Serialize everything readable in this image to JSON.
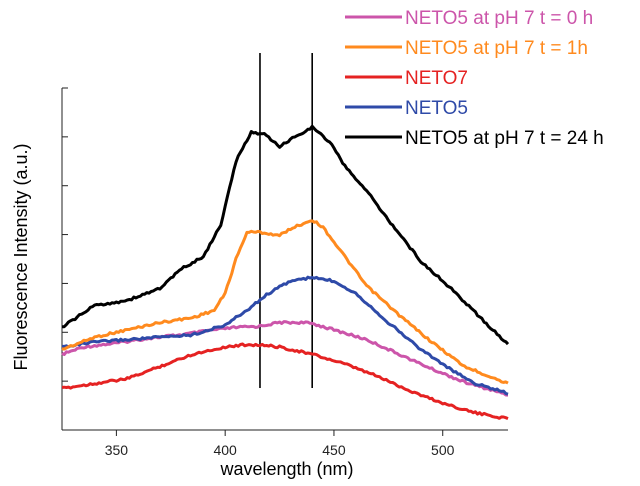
{
  "chart_data": {
    "type": "line",
    "xlabel": "wavelength (nm)",
    "ylabel": "Fluorescence Intensity (a.u.)",
    "xlim": [
      325,
      530
    ],
    "xticks": [
      350,
      400,
      450,
      500
    ],
    "ylim": [
      0,
      7
    ],
    "y_tick_labels_shown": false,
    "grid": false,
    "legend_placement": "top-right",
    "vertical_markers": [
      416,
      440
    ],
    "series": [
      {
        "name": "NETO5 at pH 7 t = 0 h",
        "color": "#cc55aa",
        "x": [
          325,
          335,
          350,
          365,
          380,
          395,
          405,
          415,
          425,
          435,
          440,
          450,
          465,
          480,
          495,
          510,
          530
        ],
        "y": [
          1.55,
          1.7,
          1.78,
          1.88,
          1.95,
          2.05,
          2.1,
          2.12,
          2.2,
          2.2,
          2.18,
          2.05,
          1.85,
          1.55,
          1.25,
          0.98,
          0.72
        ]
      },
      {
        "name": "NETO5 at pH 7 t = 1h",
        "color": "#ff8a1e",
        "x": [
          325,
          340,
          355,
          370,
          385,
          395,
          400,
          405,
          410,
          416,
          425,
          430,
          440,
          445,
          455,
          465,
          480,
          495,
          510,
          530
        ],
        "y": [
          1.65,
          1.9,
          2.05,
          2.2,
          2.3,
          2.45,
          2.8,
          3.5,
          4.05,
          4.05,
          3.98,
          4.12,
          4.3,
          4.15,
          3.55,
          2.95,
          2.35,
          1.8,
          1.3,
          0.95
        ]
      },
      {
        "name": "NETO7",
        "color": "#e52222",
        "x": [
          325,
          340,
          355,
          370,
          385,
          400,
          410,
          416,
          425,
          440,
          455,
          470,
          485,
          500,
          515,
          530
        ],
        "y": [
          0.85,
          0.95,
          1.05,
          1.3,
          1.55,
          1.7,
          1.75,
          1.74,
          1.7,
          1.55,
          1.35,
          1.1,
          0.8,
          0.55,
          0.35,
          0.23
        ]
      },
      {
        "name": "NETO5",
        "color": "#2e4aa8",
        "x": [
          325,
          340,
          355,
          370,
          385,
          400,
          410,
          420,
          430,
          440,
          450,
          460,
          475,
          490,
          505,
          515,
          530
        ],
        "y": [
          1.7,
          1.8,
          1.85,
          1.9,
          1.95,
          2.15,
          2.45,
          2.8,
          3.05,
          3.12,
          3.05,
          2.8,
          2.2,
          1.65,
          1.2,
          0.95,
          0.75
        ]
      },
      {
        "name": "NETO5 at pH 7 t = 24 h",
        "color": "#000000",
        "x": [
          325,
          340,
          355,
          370,
          380,
          390,
          398,
          405,
          412,
          418,
          425,
          432,
          440,
          448,
          455,
          465,
          475,
          490,
          505,
          515,
          530
        ],
        "y": [
          2.1,
          2.55,
          2.65,
          2.9,
          3.3,
          3.55,
          4.2,
          5.5,
          6.1,
          6.05,
          5.8,
          6.0,
          6.2,
          5.9,
          5.4,
          4.9,
          4.3,
          3.45,
          2.85,
          2.4,
          1.75
        ]
      }
    ]
  }
}
